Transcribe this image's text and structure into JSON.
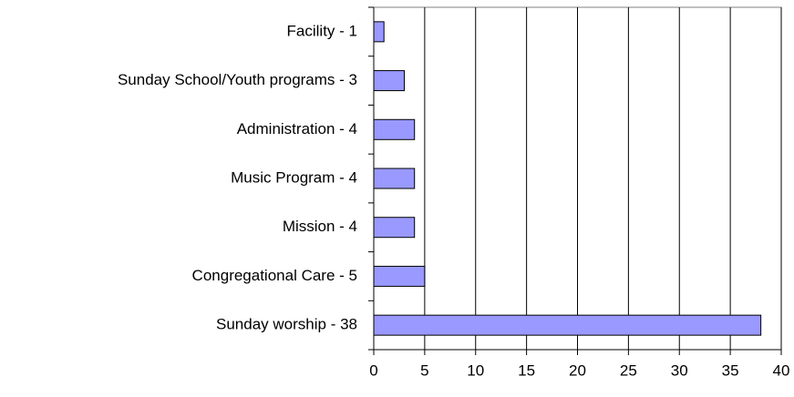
{
  "chart_data": {
    "type": "bar",
    "orientation": "horizontal",
    "categories": [
      "Facility - 1",
      "Sunday School/Youth programs - 3",
      "Administration - 4",
      "Music Program - 4",
      "Mission - 4",
      "Congregational Care - 5",
      "Sunday worship - 38"
    ],
    "values": [
      1,
      3,
      4,
      4,
      4,
      5,
      38
    ],
    "color": "#9999ff",
    "xlim": [
      0,
      40
    ],
    "xticks": [
      0,
      5,
      10,
      15,
      20,
      25,
      30,
      35,
      40
    ],
    "grid": true
  }
}
